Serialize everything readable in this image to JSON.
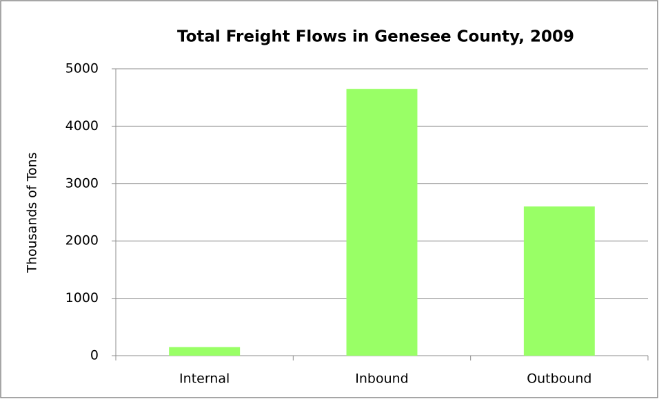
{
  "chart_data": {
    "type": "bar",
    "title": "Total Freight Flows in Genesee County, 2009",
    "y_label": "Thousands of Tons",
    "categories": [
      "Internal",
      "Inbound",
      "Outbound"
    ],
    "values": [
      150,
      4650,
      2600
    ],
    "color": "#99ff66",
    "ylim": [
      0,
      5000
    ],
    "yticks": [
      0,
      1000,
      2000,
      3000,
      4000,
      5000
    ],
    "grid": true
  }
}
